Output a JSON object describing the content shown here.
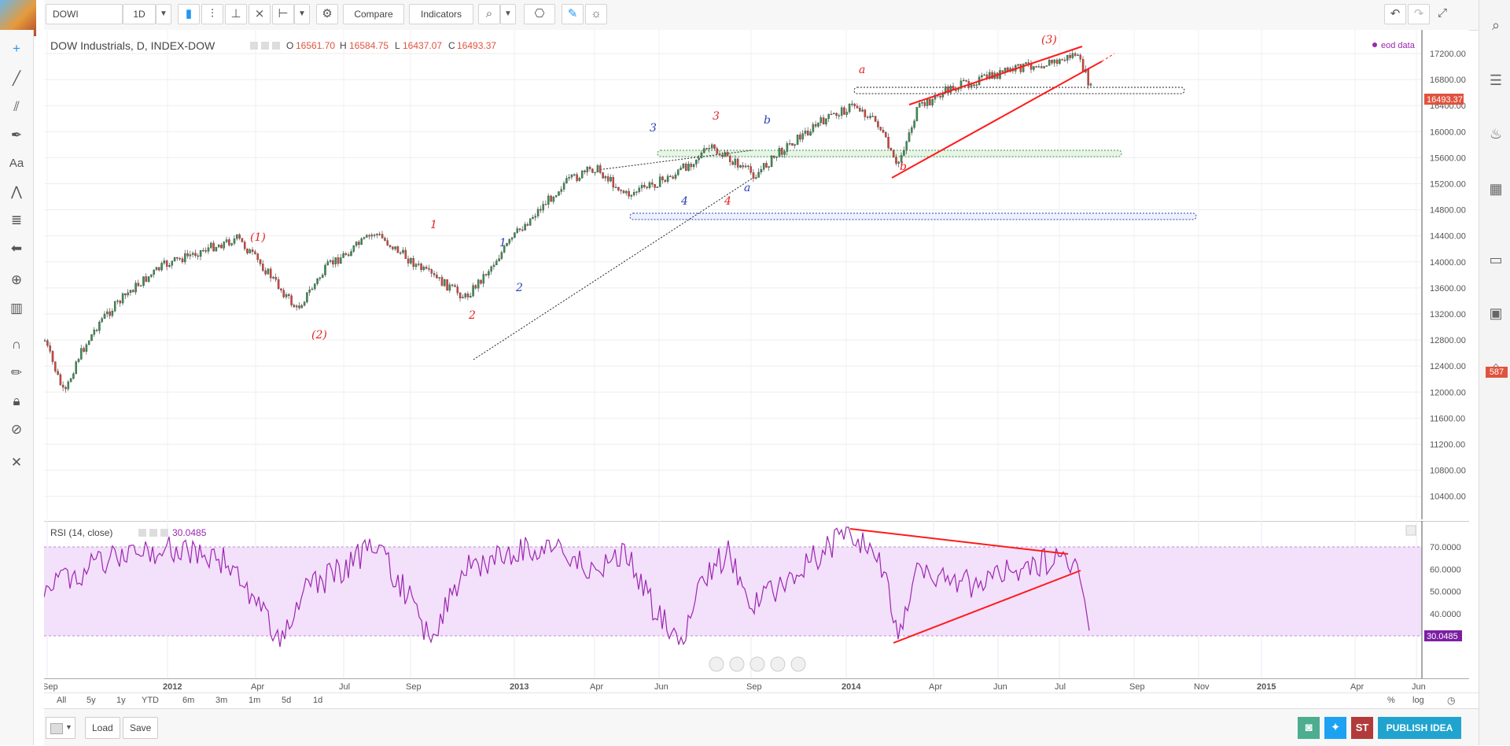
{
  "toolbar": {
    "symbol": "DOWI",
    "interval": "1D",
    "compare_label": "Compare",
    "indicators_label": "Indicators"
  },
  "chart": {
    "legend_title": "DOW Industrials, D, INDEX-DOW",
    "open_label": "O",
    "open": "16561.70",
    "high_label": "H",
    "high": "16584.75",
    "low_label": "L",
    "low": "16437.07",
    "close_label": "C",
    "close": "16493.37",
    "eod_label": "eod data",
    "last_price": "16493.37",
    "price_axis": [
      "17200.00",
      "16800.00",
      "16400.00",
      "16000.00",
      "15600.00",
      "15200.00",
      "14800.00",
      "14400.00",
      "14000.00",
      "13600.00",
      "13200.00",
      "12800.00",
      "12400.00",
      "12000.00",
      "11600.00",
      "11200.00",
      "10800.00",
      "10400.00"
    ],
    "time_axis": [
      "Sep",
      "2012",
      "Apr",
      "Jul",
      "Sep",
      "2013",
      "Apr",
      "Jun",
      "Sep",
      "2014",
      "Apr",
      "Jun",
      "Jul",
      "Sep",
      "Nov",
      "2015",
      "Apr",
      "Jun"
    ],
    "wave_labels": [
      "(1)",
      "(2)",
      "1",
      "2",
      "1",
      "2",
      "3",
      "4",
      "3",
      "4",
      "b",
      "a",
      "a",
      "b",
      "(3)"
    ],
    "accent_colors": {
      "up": "#3a8f53",
      "down": "#d9433a",
      "trend": "#ff1a1a",
      "rsi": "#9c27b0",
      "rsi_band": "#f3e0fb"
    }
  },
  "rsi": {
    "label": "RSI (14, close)",
    "value": "30.0485",
    "axis": [
      "70.0000",
      "60.0000",
      "50.0000",
      "40.0000"
    ],
    "last_value": "30.0485"
  },
  "range_bar": {
    "items": [
      "All",
      "5y",
      "1y",
      "YTD",
      "6m",
      "3m",
      "1m",
      "5d",
      "1d"
    ],
    "pct": "%",
    "log": "log"
  },
  "bottom": {
    "load_label": "Load",
    "save_label": "Save",
    "publish_label": "PUBLISH IDEA",
    "st_label": "ST"
  },
  "sidebar": {
    "badge": "587"
  }
}
